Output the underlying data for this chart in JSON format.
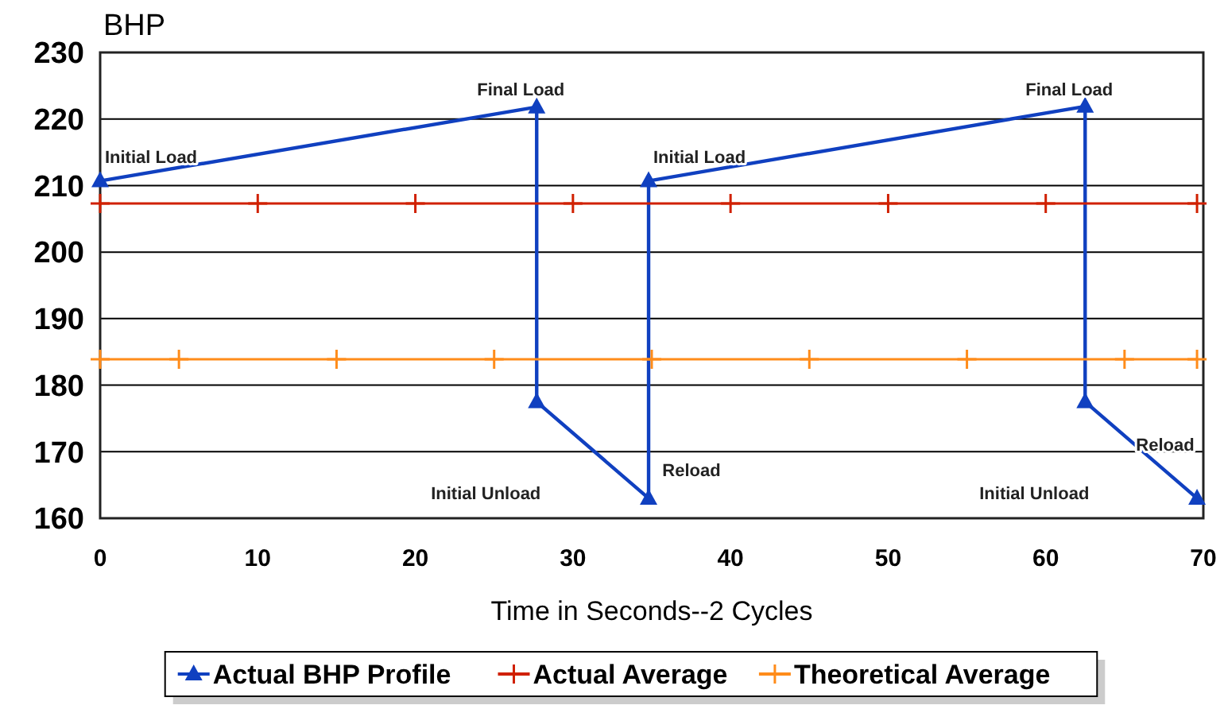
{
  "chart_data": {
    "type": "line",
    "xlabel": "Time in Seconds--2 Cycles",
    "ylabel": "BHP",
    "xlim": [
      0,
      70
    ],
    "xticks": [
      0,
      10,
      20,
      30,
      40,
      50,
      60,
      70
    ],
    "ylim": [
      160,
      230
    ],
    "yticks": [
      160,
      170,
      180,
      190,
      200,
      210,
      220,
      230
    ],
    "grid": "y",
    "legend": "bottom",
    "series": [
      {
        "name": "Actual BHP Profile",
        "color": "#1040c0",
        "marker": "triangle",
        "x": [
          0,
          27.7,
          27.7,
          34.8,
          34.8,
          62.5,
          62.5,
          69.6
        ],
        "values": [
          210.7,
          221.8,
          177.5,
          163,
          210.7,
          221.9,
          177.5,
          163
        ]
      },
      {
        "name": "Actual Average",
        "color": "#d02000",
        "marker": "cross",
        "x": [
          0,
          10,
          20,
          30,
          40,
          50,
          60,
          69.6
        ],
        "values": [
          207.3,
          207.3,
          207.3,
          207.3,
          207.3,
          207.3,
          207.3,
          207.3
        ]
      },
      {
        "name": "Theoretical Average",
        "color": "#ff8c1a",
        "marker": "cross",
        "x": [
          0,
          5,
          15,
          25,
          35,
          45,
          55,
          65,
          69.6
        ],
        "values": [
          183.9,
          183.9,
          183.9,
          183.9,
          183.9,
          183.9,
          183.9,
          183.9,
          183.9
        ]
      }
    ],
    "annotations": [
      "Initial Load",
      "Final Load",
      "Initial Unload",
      "Reload",
      "Initial Load",
      "Final Load",
      "Initial Unload",
      "Reload"
    ]
  }
}
